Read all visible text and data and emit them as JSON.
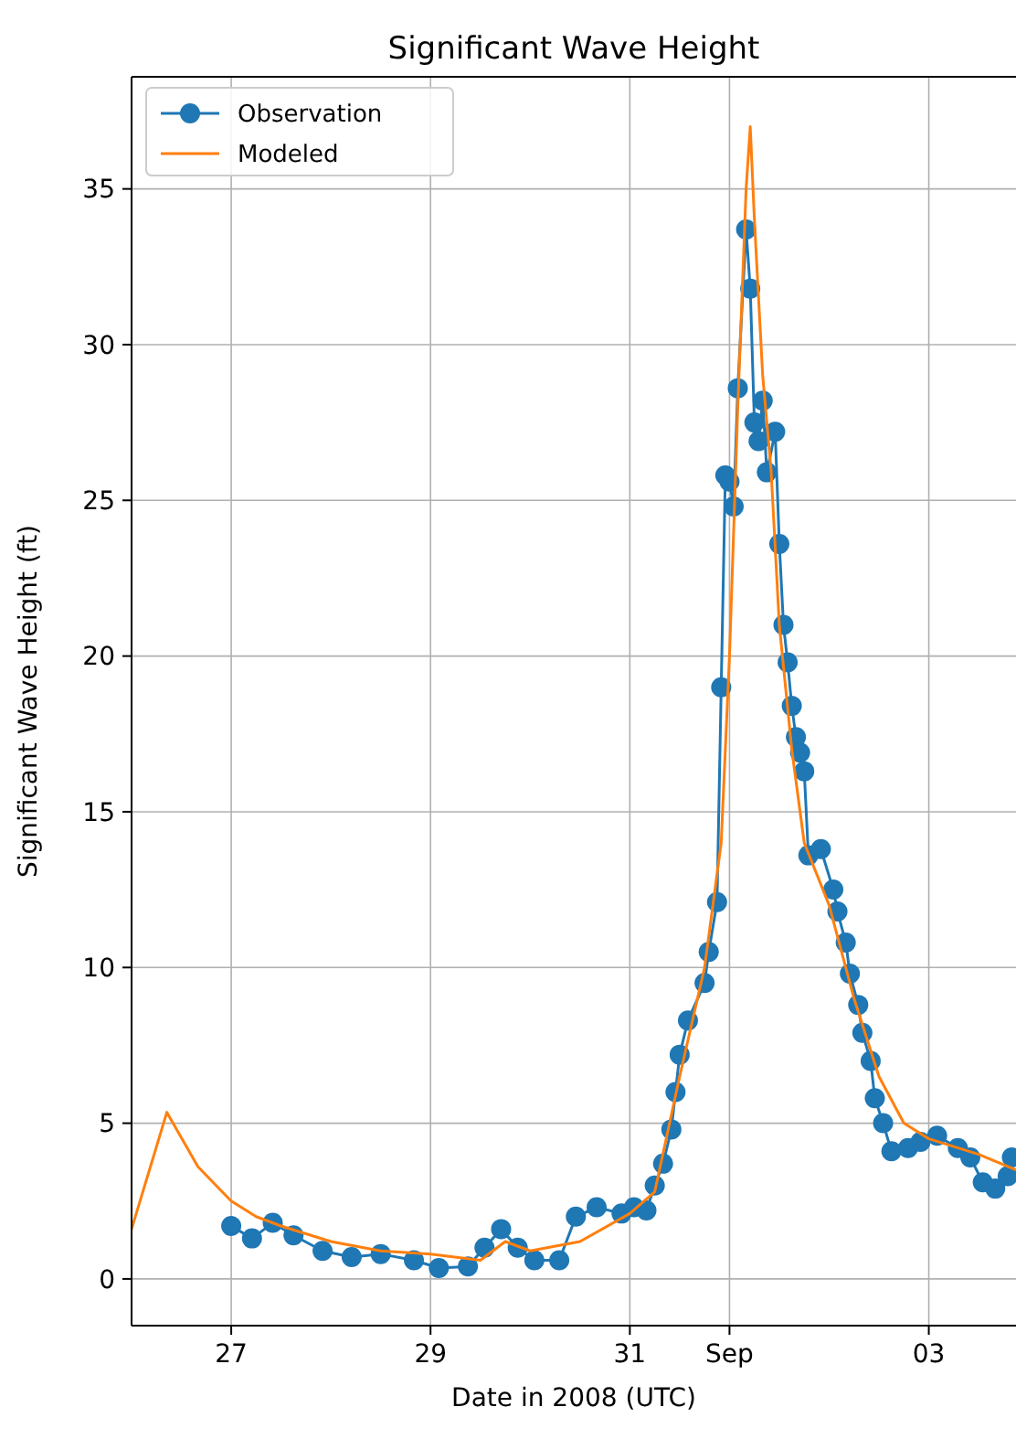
{
  "chart_data": {
    "type": "line",
    "title": "Significant Wave Height",
    "xlabel": "Date in 2008 (UTC)",
    "ylabel": "Significant Wave Height (ft)",
    "xlim": [
      "2008-08-26",
      "2008-09-03T21:00"
    ],
    "xticks": [
      {
        "value": "2008-08-27",
        "label": "27"
      },
      {
        "value": "2008-08-29",
        "label": "29"
      },
      {
        "value": "2008-08-31",
        "label": "31"
      },
      {
        "value": "2008-09-01",
        "label": "Sep"
      },
      {
        "value": "2008-09-03",
        "label": "03"
      }
    ],
    "ylim": [
      -1.5,
      38.6
    ],
    "yticks": [
      0,
      5,
      10,
      15,
      20,
      25,
      30,
      35
    ],
    "grid": true,
    "legend": "top left",
    "series": [
      {
        "name": "Observation",
        "color": "#1f77b4",
        "marker": "circle",
        "x": [
          "2008-08-27T00:00",
          "2008-08-27T05:00",
          "2008-08-27T10:00",
          "2008-08-27T15:00",
          "2008-08-27T22:00",
          "2008-08-28T05:00",
          "2008-08-28T12:00",
          "2008-08-28T20:00",
          "2008-08-29T02:00",
          "2008-08-29T09:00",
          "2008-08-29T13:00",
          "2008-08-29T17:00",
          "2008-08-29T21:00",
          "2008-08-30T01:00",
          "2008-08-30T07:00",
          "2008-08-30T11:00",
          "2008-08-30T16:00",
          "2008-08-30T22:00",
          "2008-08-31T01:00",
          "2008-08-31T04:00",
          "2008-08-31T06:00",
          "2008-08-31T08:00",
          "2008-08-31T10:00",
          "2008-08-31T11:00",
          "2008-08-31T12:00",
          "2008-08-31T14:00",
          "2008-08-31T18:00",
          "2008-08-31T19:00",
          "2008-08-31T21:00",
          "2008-08-31T22:00",
          "2008-08-31T23:00",
          "2008-09-01T00:00",
          "2008-09-01T01:00",
          "2008-09-01T02:00",
          "2008-09-01T04:00",
          "2008-09-01T05:00",
          "2008-09-01T06:00",
          "2008-09-01T07:00",
          "2008-09-01T08:00",
          "2008-09-01T09:00",
          "2008-09-01T11:00",
          "2008-09-01T12:00",
          "2008-09-01T13:00",
          "2008-09-01T14:00",
          "2008-09-01T15:00",
          "2008-09-01T16:00",
          "2008-09-01T17:00",
          "2008-09-01T18:00",
          "2008-09-01T19:00",
          "2008-09-01T22:00",
          "2008-09-02T01:00",
          "2008-09-02T02:00",
          "2008-09-02T04:00",
          "2008-09-02T05:00",
          "2008-09-02T07:00",
          "2008-09-02T08:00",
          "2008-09-02T10:00",
          "2008-09-02T11:00",
          "2008-09-02T13:00",
          "2008-09-02T15:00",
          "2008-09-02T19:00",
          "2008-09-02T22:00",
          "2008-09-03T02:00",
          "2008-09-03T07:00",
          "2008-09-03T10:00",
          "2008-09-03T13:00",
          "2008-09-03T16:00",
          "2008-09-03T19:00",
          "2008-09-03T20:00"
        ],
        "values": [
          1.7,
          1.3,
          1.8,
          1.4,
          0.9,
          0.7,
          0.8,
          0.6,
          0.35,
          0.4,
          1.0,
          1.6,
          1.0,
          0.6,
          0.6,
          2.0,
          2.3,
          2.1,
          2.3,
          2.2,
          3.0,
          3.7,
          4.8,
          6.0,
          7.2,
          8.3,
          9.5,
          10.5,
          12.1,
          19.0,
          25.8,
          25.6,
          24.8,
          28.6,
          33.7,
          31.8,
          27.5,
          26.9,
          28.2,
          25.9,
          27.2,
          23.6,
          21.0,
          19.8,
          18.4,
          17.4,
          16.9,
          16.3,
          13.6,
          13.8,
          12.5,
          11.8,
          10.8,
          9.8,
          8.8,
          7.9,
          7.0,
          5.8,
          5.0,
          4.1,
          4.2,
          4.4,
          4.6,
          4.2,
          3.9,
          3.1,
          2.9,
          3.3,
          3.9
        ]
      },
      {
        "name": "Modeled",
        "color": "#ff7f0e",
        "marker": "none",
        "x": [
          "2008-08-26T00:00",
          "2008-08-26T08:30",
          "2008-08-26T16:00",
          "2008-08-27T00:00",
          "2008-08-27T06:00",
          "2008-08-27T12:00",
          "2008-08-28T00:00",
          "2008-08-28T12:00",
          "2008-08-29T00:00",
          "2008-08-29T12:00",
          "2008-08-29T18:00",
          "2008-08-30T00:00",
          "2008-08-30T12:00",
          "2008-08-31T00:00",
          "2008-08-31T06:00",
          "2008-08-31T12:00",
          "2008-08-31T18:00",
          "2008-08-31T22:00",
          "2008-09-01T00:00",
          "2008-09-01T02:00",
          "2008-09-01T04:00",
          "2008-09-01T05:00",
          "2008-09-01T06:00",
          "2008-09-01T08:00",
          "2008-09-01T10:00",
          "2008-09-01T12:00",
          "2008-09-01T15:00",
          "2008-09-01T18:00",
          "2008-09-02T00:00",
          "2008-09-02T06:00",
          "2008-09-02T12:00",
          "2008-09-02T18:00",
          "2008-09-03T00:00",
          "2008-09-03T12:00",
          "2008-09-03T21:00"
        ],
        "values": [
          1.6,
          5.35,
          3.6,
          2.5,
          2.0,
          1.7,
          1.2,
          0.9,
          0.8,
          0.6,
          1.2,
          0.9,
          1.2,
          2.1,
          2.8,
          6.5,
          10.0,
          14.0,
          20.0,
          28.0,
          35.0,
          37.0,
          34.0,
          29.0,
          26.0,
          21.0,
          17.0,
          14.0,
          12.0,
          9.0,
          6.5,
          5.0,
          4.5,
          4.0,
          3.5
        ]
      }
    ]
  }
}
